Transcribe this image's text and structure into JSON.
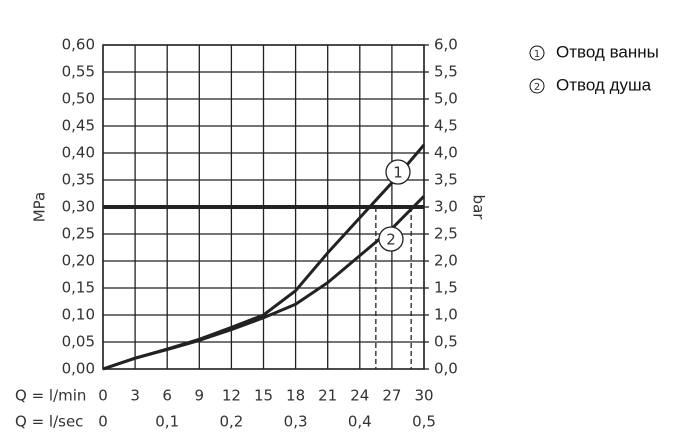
{
  "chart_data": {
    "type": "line",
    "y_label": "MPa",
    "y2_label": "bar",
    "x_row_label": "Q = l/min",
    "x2_row_label": "Q = l/sec",
    "x": [
      0,
      3,
      6,
      9,
      12,
      15,
      18,
      21,
      24,
      27,
      30
    ],
    "series": [
      {
        "name": "Отвод ванны",
        "marker_label": "1",
        "color": "#222222",
        "values": [
          0,
          0.02,
          0.037,
          0.055,
          0.077,
          0.1,
          0.145,
          0.215,
          0.28,
          0.345,
          0.415
        ]
      },
      {
        "name": "Отвод душа",
        "marker_label": "2",
        "color": "#222222",
        "values": [
          0,
          0.02,
          0.036,
          0.053,
          0.073,
          0.095,
          0.12,
          0.16,
          0.21,
          0.26,
          0.32
        ]
      }
    ],
    "xlim": [
      0,
      30
    ],
    "xticks": [
      0,
      3,
      6,
      9,
      12,
      15,
      18,
      21,
      24,
      27,
      30
    ],
    "x2lim": [
      0,
      0.5
    ],
    "x2ticks": [
      0,
      {
        "value": 0.1,
        "label": "0,1"
      },
      {
        "value": 0.2,
        "label": "0,2"
      },
      {
        "value": 0.3,
        "label": "0,3"
      },
      {
        "value": 0.4,
        "label": "0,4"
      },
      {
        "value": 0.5,
        "label": "0,5"
      }
    ],
    "ylim": [
      0,
      0.6
    ],
    "yticks": [
      {
        "value": 0,
        "label": "0,00"
      },
      {
        "value": 0.05,
        "label": "0,05"
      },
      {
        "value": 0.1,
        "label": "0,10"
      },
      {
        "value": 0.15,
        "label": "0,15"
      },
      {
        "value": 0.2,
        "label": "0,20"
      },
      {
        "value": 0.25,
        "label": "0,25"
      },
      {
        "value": 0.3,
        "label": "0,30"
      },
      {
        "value": 0.35,
        "label": "0,35"
      },
      {
        "value": 0.4,
        "label": "0,40"
      },
      {
        "value": 0.45,
        "label": "0,45"
      },
      {
        "value": 0.5,
        "label": "0,50"
      },
      {
        "value": 0.55,
        "label": "0,55"
      },
      {
        "value": 0.6,
        "label": "0,60"
      }
    ],
    "y2lim": [
      0,
      6
    ],
    "y2ticks": [
      {
        "value": 0,
        "label": "0,0"
      },
      {
        "value": 0.5,
        "label": "0,5"
      },
      {
        "value": 1,
        "label": "1,0"
      },
      {
        "value": 1.5,
        "label": "1,5"
      },
      {
        "value": 2,
        "label": "2,0"
      },
      {
        "value": 2.5,
        "label": "2,5"
      },
      {
        "value": 3,
        "label": "3,0"
      },
      {
        "value": 3.5,
        "label": "3,5"
      },
      {
        "value": 4,
        "label": "4,0"
      },
      {
        "value": 4.5,
        "label": "4,5"
      },
      {
        "value": 5,
        "label": "5,0"
      },
      {
        "value": 5.5,
        "label": "5,5"
      },
      {
        "value": 6,
        "label": "6,0"
      }
    ],
    "reference_line": 0.3,
    "drop_lines": [
      {
        "x": 25.5,
        "y": 0.3
      },
      {
        "x": 28.8,
        "y": 0.3
      }
    ],
    "grid": true
  }
}
